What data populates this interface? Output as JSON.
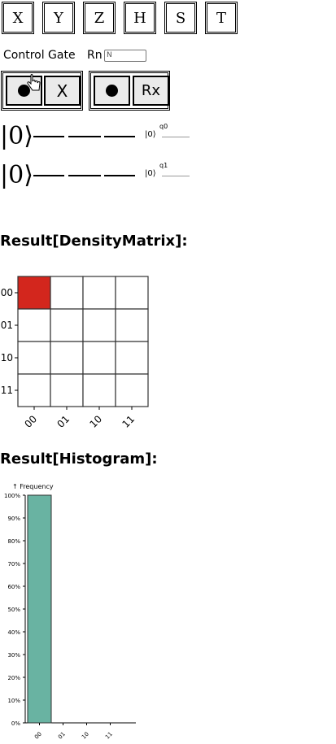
{
  "gates": [
    "X",
    "Y",
    "Z",
    "H",
    "S",
    "T"
  ],
  "control_gate_label": "Control Gate",
  "rn_label": "Rn",
  "rn_placeholder": "N",
  "control_groups": [
    {
      "target_label": "X"
    },
    {
      "target_label": "Rx"
    }
  ],
  "circuit": {
    "ket": "|0⟩",
    "output_ket": "|0⟩",
    "qubits": [
      "q0",
      "q1"
    ]
  },
  "density_title": "Result[DensityMatrix]:",
  "density_matrix": {
    "labels": [
      "00",
      "01",
      "10",
      "11"
    ],
    "highlight_color": "#d3261d",
    "values": [
      [
        1,
        0,
        0,
        0
      ],
      [
        0,
        0,
        0,
        0
      ],
      [
        0,
        0,
        0,
        0
      ],
      [
        0,
        0,
        0,
        0
      ]
    ]
  },
  "histogram_title": "Result[Histogram]:",
  "chart_data": {
    "type": "bar",
    "ylabel": "↑ Frequency",
    "categories": [
      "00",
      "01",
      "10",
      "11"
    ],
    "values": [
      100,
      0,
      0,
      0
    ],
    "ylim": [
      0,
      100
    ],
    "yticks": [
      "0%",
      "10%",
      "20%",
      "30%",
      "40%",
      "50%",
      "60%",
      "70%",
      "80%",
      "90%",
      "100%"
    ],
    "bar_color": "#69b3a2"
  }
}
